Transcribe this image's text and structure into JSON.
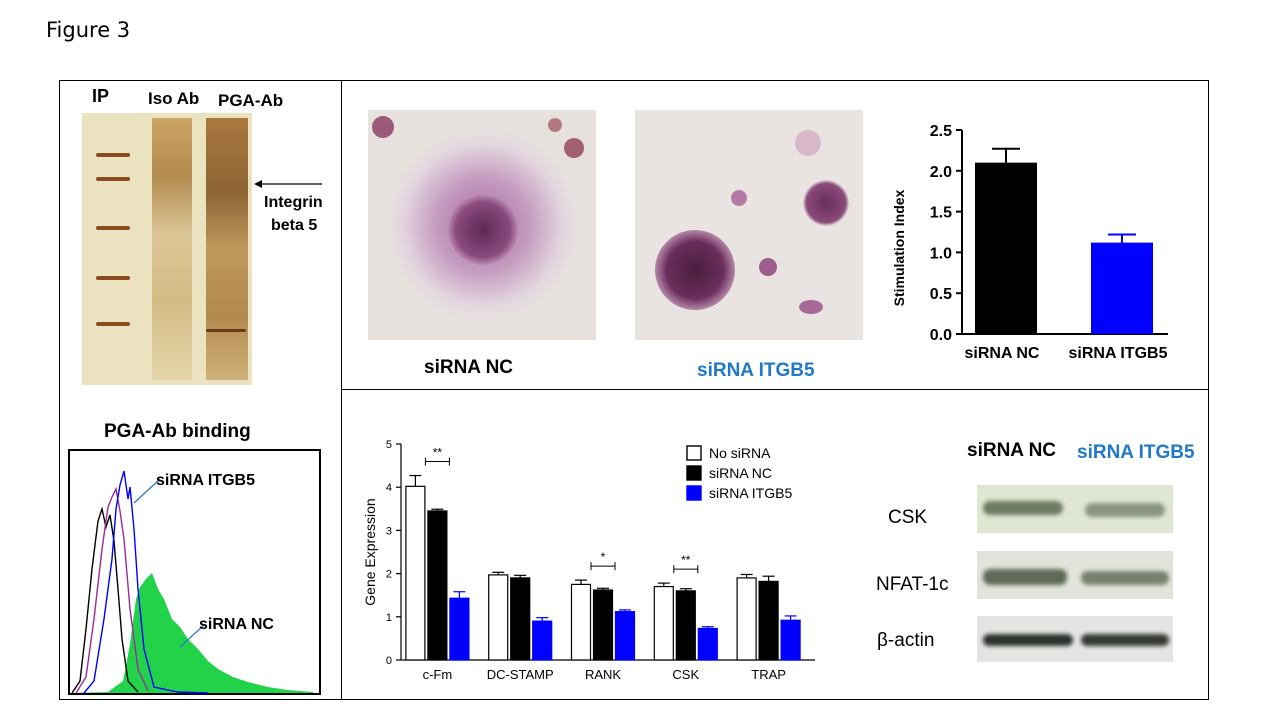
{
  "figure_title": "Figure 3",
  "ip": {
    "label_ip": "IP",
    "label_iso": "Iso Ab",
    "label_pga": "PGA-Ab",
    "annotation_line1": "Integrin",
    "annotation_line2": "beta 5"
  },
  "flow": {
    "title": "PGA-Ab binding",
    "label_itgb5": "siRNA ITGB5",
    "label_nc": "siRNA NC"
  },
  "micro": {
    "label_nc": "siRNA NC",
    "label_itgb5": "siRNA ITGB5"
  },
  "colors": {
    "blue_label": "#1f78c8",
    "series_black": "#000000",
    "series_blue": "#0000ff",
    "flow_green": "#22d34a"
  },
  "western": {
    "col_nc": "siRNA NC",
    "col_itgb5": "siRNA ITGB5",
    "rows": [
      "CSK",
      "NFAT-1c",
      "β-actin"
    ]
  },
  "chart_data": [
    {
      "type": "bar",
      "ylabel": "Stimulation Index",
      "categories": [
        "siRNA NC",
        "siRNA ITGB5"
      ],
      "values": [
        2.1,
        1.12
      ],
      "errors": [
        0.17,
        0.1
      ],
      "colors": [
        "#000000",
        "#0000ff"
      ],
      "ylim": [
        0,
        2.5
      ],
      "yticks": [
        "0.0",
        "0.5",
        "1.0",
        "1.5",
        "2.0",
        "2.5"
      ]
    },
    {
      "type": "bar",
      "ylabel": "Gene Expression",
      "categories": [
        "c-Fm",
        "DC-STAMP",
        "RANK",
        "CSK",
        "TRAP"
      ],
      "ylim": [
        0,
        5
      ],
      "yticks": [
        "0",
        "1",
        "2",
        "3",
        "4",
        "5"
      ],
      "legend_position": "top-right",
      "series": [
        {
          "name": "No siRNA",
          "color": "#ffffff",
          "values": [
            4.02,
            1.97,
            1.75,
            1.7,
            1.9
          ],
          "errors": [
            0.25,
            0.06,
            0.1,
            0.08,
            0.08
          ]
        },
        {
          "name": "siRNA NC",
          "color": "#000000",
          "values": [
            3.45,
            1.9,
            1.62,
            1.6,
            1.82
          ],
          "errors": [
            0.04,
            0.06,
            0.04,
            0.05,
            0.12
          ]
        },
        {
          "name": "siRNA ITGB5",
          "color": "#0000ff",
          "values": [
            1.43,
            0.9,
            1.12,
            0.73,
            0.92
          ],
          "errors": [
            0.15,
            0.08,
            0.04,
            0.04,
            0.1
          ]
        }
      ],
      "significance": [
        {
          "category": "c-Fm",
          "label": "**"
        },
        {
          "category": "RANK",
          "label": "*"
        },
        {
          "category": "CSK",
          "label": "**"
        }
      ]
    }
  ]
}
